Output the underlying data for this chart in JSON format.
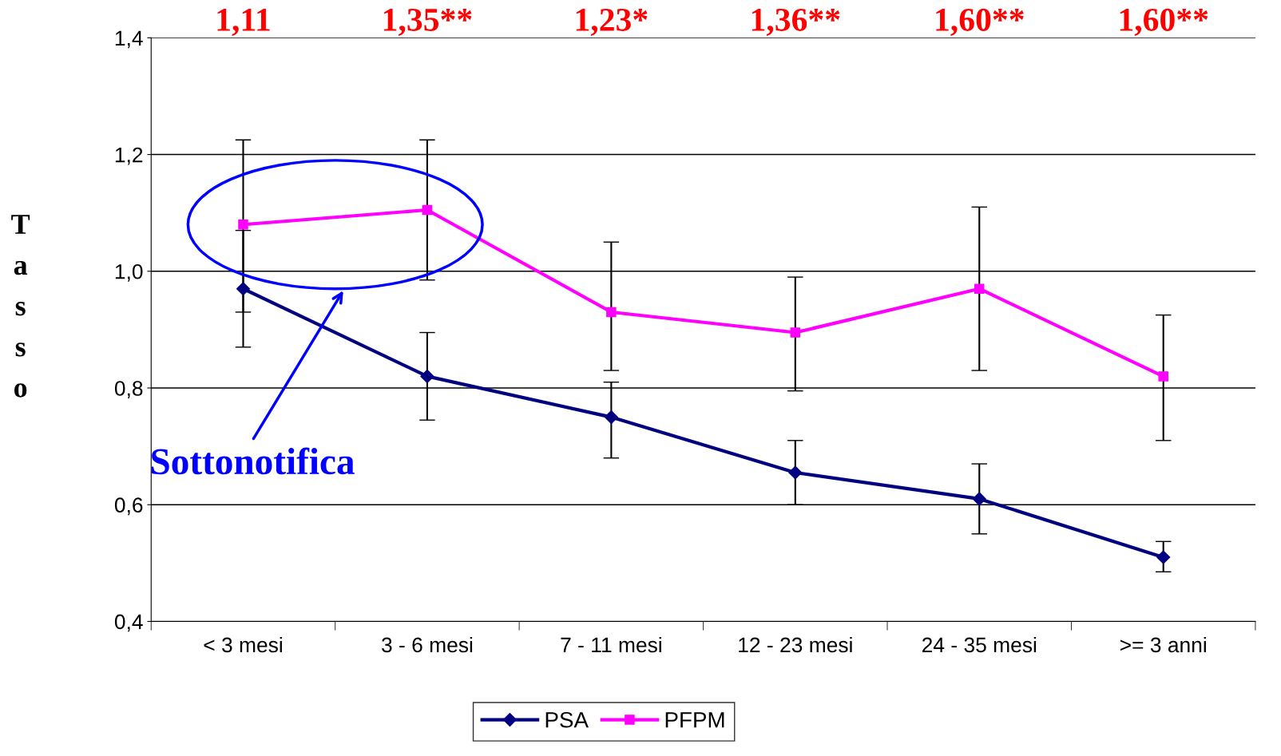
{
  "chart_data": {
    "type": "line",
    "ylabel": "Tasso",
    "categories": [
      "< 3 mesi",
      "3 - 6 mesi",
      "7 - 11 mesi",
      "12 - 23 mesi",
      "24 - 35 mesi",
      ">= 3 anni"
    ],
    "series": [
      {
        "name": "PSA",
        "color": "#000080",
        "marker": "diamond",
        "values": [
          0.97,
          0.82,
          0.75,
          0.655,
          0.61,
          0.51
        ],
        "errors": [
          [
            0.87,
            1.07
          ],
          [
            0.745,
            0.895
          ],
          [
            0.68,
            0.81
          ],
          [
            0.6,
            0.71
          ],
          [
            0.55,
            0.67
          ],
          [
            0.485,
            0.537
          ]
        ]
      },
      {
        "name": "PFPM",
        "color": "#ff00ff",
        "marker": "square",
        "values": [
          1.08,
          1.105,
          0.93,
          0.895,
          0.97,
          0.82
        ],
        "errors": [
          [
            0.93,
            1.225
          ],
          [
            0.985,
            1.225
          ],
          [
            0.83,
            1.05
          ],
          [
            0.795,
            0.99
          ],
          [
            0.83,
            1.11
          ],
          [
            0.71,
            0.925
          ]
        ]
      }
    ],
    "ylim": [
      0.4,
      1.4
    ],
    "yticks": [
      {
        "value": 0.4,
        "label": "0,4"
      },
      {
        "value": 0.6,
        "label": "0,6"
      },
      {
        "value": 0.8,
        "label": "0,8"
      },
      {
        "value": 1.0,
        "label": "1,0"
      },
      {
        "value": 1.2,
        "label": "1,2"
      },
      {
        "value": 1.4,
        "label": "1,4"
      }
    ],
    "grid": "y",
    "legend": "bottom",
    "annotations": [
      "1,11",
      "1,35**",
      "1,23*",
      "1,36**",
      "1,60**",
      "1,60**",
      "Sottonotifica"
    ]
  }
}
